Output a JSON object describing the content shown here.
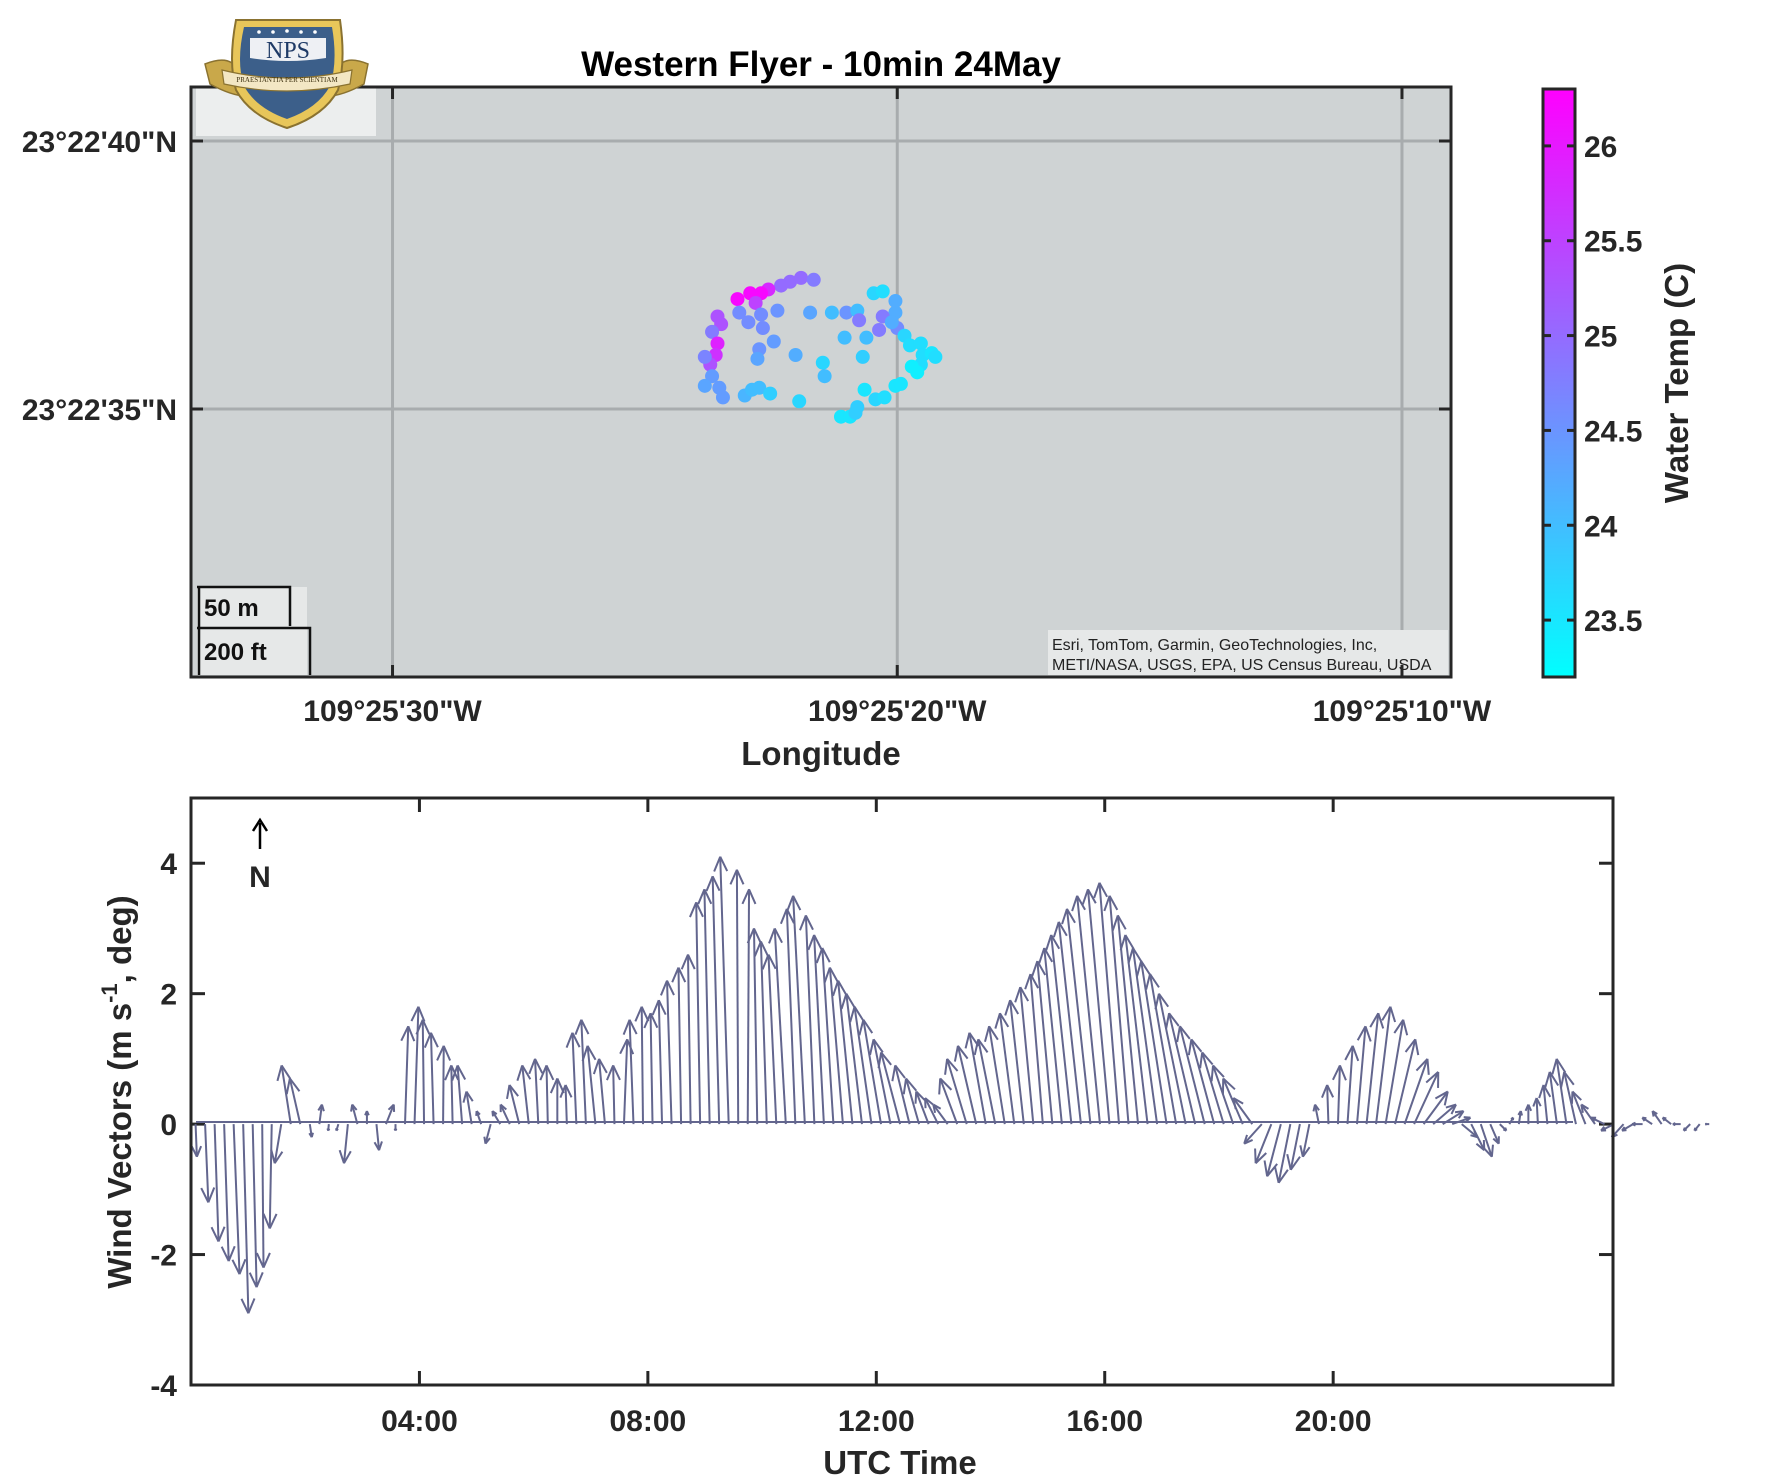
{
  "logo": {
    "text": "NPS",
    "motto": "PRAESTANTIA PER SCIENTIAM"
  },
  "chart_data": [
    {
      "type": "scatter",
      "title": "Western Flyer - 10min 24May",
      "xlabel": "Longitude",
      "ylabel": "",
      "background": "#cfd3d4",
      "x_ticks": [
        "109°25'30\"W",
        "109°25'20\"W",
        "109°25'10\"W"
      ],
      "x_tick_values": [
        -109.425,
        -109.42222,
        -109.41944
      ],
      "y_ticks": [
        "23°22'40\"N",
        "23°22'35\"N"
      ],
      "y_tick_values": [
        23.37778,
        23.37639
      ],
      "xlim": [
        -109.42611,
        -109.41917
      ],
      "ylim": [
        23.375,
        23.37806
      ],
      "scalebar": [
        "50 m",
        "200 ft"
      ],
      "attribution": [
        "Esri, TomTom, Garmin, GeoTechnologies, Inc,",
        "METI/NASA, USGS, EPA, US Census Bureau, USDA"
      ],
      "colorbar": {
        "label": "Water Temp (C)",
        "ticks": [
          "23.5",
          "24",
          "24.5",
          "25",
          "25.5",
          "26"
        ],
        "tick_values": [
          23.5,
          24,
          24.5,
          25,
          25.5,
          26
        ],
        "clim": [
          23.2,
          26.3
        ],
        "colors": [
          "#00ffff",
          "#ff00ff"
        ]
      },
      "points": [
        [
          -109.42281,
          23.37705,
          25.0
        ],
        [
          -109.42275,
          23.37707,
          25.0
        ],
        [
          -109.42268,
          23.37706,
          24.8
        ],
        [
          -109.42286,
          23.37703,
          25.0
        ],
        [
          -109.42293,
          23.37701,
          25.8
        ],
        [
          -109.42297,
          23.37699,
          26.2
        ],
        [
          -109.42303,
          23.37699,
          26.2
        ],
        [
          -109.4231,
          23.37696,
          26.2
        ],
        [
          -109.423,
          23.37694,
          25.5
        ],
        [
          -109.42309,
          23.37689,
          24.6
        ],
        [
          -109.42297,
          23.37688,
          24.6
        ],
        [
          -109.42304,
          23.37684,
          24.6
        ],
        [
          -109.42288,
          23.3769,
          24.5
        ],
        [
          -109.4227,
          23.37689,
          24.3
        ],
        [
          -109.42258,
          23.37689,
          24.0
        ],
        [
          -109.4225,
          23.37689,
          24.5
        ],
        [
          -109.42244,
          23.3769,
          24.0
        ],
        [
          -109.42235,
          23.37699,
          23.7
        ],
        [
          -109.4223,
          23.377,
          23.6
        ],
        [
          -109.42223,
          23.37695,
          24.2
        ],
        [
          -109.42223,
          23.37689,
          24.2
        ],
        [
          -109.4223,
          23.37687,
          24.8
        ],
        [
          -109.42222,
          23.37681,
          24.6
        ],
        [
          -109.42232,
          23.3768,
          24.8
        ],
        [
          -109.42239,
          23.37676,
          24.0
        ],
        [
          -109.42251,
          23.37676,
          24.0
        ],
        [
          -109.42218,
          23.37677,
          23.7
        ],
        [
          -109.42215,
          23.37672,
          23.6
        ],
        [
          -109.42209,
          23.37673,
          23.6
        ],
        [
          -109.42208,
          23.37667,
          23.6
        ],
        [
          -109.42209,
          23.37662,
          23.6
        ],
        [
          -109.42203,
          23.37668,
          23.5
        ],
        [
          -109.42201,
          23.37666,
          23.6
        ],
        [
          -109.42211,
          23.37658,
          23.4
        ],
        [
          -109.42214,
          23.37661,
          23.4
        ],
        [
          -109.42241,
          23.37666,
          23.8
        ],
        [
          -109.42263,
          23.37663,
          23.7
        ],
        [
          -109.42278,
          23.37667,
          24.2
        ],
        [
          -109.4229,
          23.37674,
          24.4
        ],
        [
          -109.42296,
          23.37681,
          24.6
        ],
        [
          -109.42298,
          23.3767,
          24.5
        ],
        [
          -109.42299,
          23.37665,
          24.3
        ],
        [
          -109.42319,
          23.37683,
          25.3
        ],
        [
          -109.42321,
          23.37687,
          25.3
        ],
        [
          -109.42324,
          23.37679,
          24.8
        ],
        [
          -109.42321,
          23.37673,
          25.9
        ],
        [
          -109.42322,
          23.37667,
          25.7
        ],
        [
          -109.42325,
          23.37662,
          25.3
        ],
        [
          -109.42328,
          23.37666,
          24.7
        ],
        [
          -109.42324,
          23.37656,
          24.4
        ],
        [
          -109.42328,
          23.37651,
          24.3
        ],
        [
          -109.4232,
          23.3765,
          24.4
        ],
        [
          -109.42318,
          23.37645,
          24.4
        ],
        [
          -109.42306,
          23.37646,
          24.1
        ],
        [
          -109.42302,
          23.37649,
          24.0
        ],
        [
          -109.42298,
          23.3765,
          24.0
        ],
        [
          -109.42292,
          23.37647,
          23.8
        ],
        [
          -109.42276,
          23.37643,
          23.7
        ],
        [
          -109.42253,
          23.37635,
          23.5
        ],
        [
          -109.42248,
          23.37635,
          23.5
        ],
        [
          -109.42245,
          23.37637,
          23.8
        ],
        [
          -109.42244,
          23.3764,
          23.8
        ],
        [
          -109.42234,
          23.37644,
          23.7
        ],
        [
          -109.42229,
          23.37645,
          23.6
        ],
        [
          -109.42223,
          23.37651,
          23.5
        ],
        [
          -109.4222,
          23.37652,
          23.5
        ],
        [
          -109.4224,
          23.37649,
          23.5
        ],
        [
          -109.42262,
          23.37656,
          24.0
        ],
        [
          -109.42225,
          23.37684,
          24.2
        ],
        [
          -109.42243,
          23.37685,
          24.8
        ]
      ]
    },
    {
      "type": "quiver",
      "title": "",
      "xlabel": "UTC Time",
      "ylabel": "Wind Vectors (m s^-1, deg)",
      "ylabel_parts": [
        "Wind Vectors (m s",
        "-1",
        ", deg)"
      ],
      "x_ticks": [
        "04:00",
        "08:00",
        "12:00",
        "16:00",
        "20:00"
      ],
      "x_tick_values": [
        4,
        8,
        12,
        16,
        20
      ],
      "y_ticks": [
        "-4",
        "-2",
        "0",
        "2",
        "4"
      ],
      "y_tick_values": [
        -4,
        -2,
        0,
        2,
        4
      ],
      "xlim": [
        0,
        24.9
      ],
      "ylim": [
        -4,
        5
      ],
      "north_label": "N",
      "arrow_color": "#63668e",
      "interval_hours": 0.1667,
      "u": [
        0.02,
        0.05,
        0.06,
        0.07,
        0.09,
        0.08,
        0.06,
        0.02,
        -0.03,
        -0.1,
        -0.14,
        -0.16,
        0.03,
        0.04,
        -0.01,
        -0.03,
        -0.06,
        -0.08,
        0.0,
        0.04,
        0.12,
        0.0,
        0.05,
        0.06,
        -0.02,
        -0.04,
        0.01,
        -0.02,
        -0.07,
        -0.08,
        -0.07,
        -0.08,
        -0.12,
        -0.14,
        -0.15,
        -0.1,
        -0.05,
        -0.02,
        0.0,
        -0.02,
        -0.06,
        -0.07,
        -0.12,
        -0.09,
        -0.02,
        0.05,
        -0.06,
        -0.02,
        -0.03,
        -0.05,
        -0.07,
        -0.04,
        -0.04,
        -0.06,
        -0.08,
        -0.1,
        -0.13,
        -0.02,
        0.02,
        -0.05,
        -0.09,
        -0.12,
        -0.17,
        -0.13,
        -0.18,
        -0.13,
        -0.15,
        -0.17,
        -0.2,
        -0.22,
        -0.24,
        -0.26,
        -0.27,
        -0.26,
        -0.29,
        -0.22,
        -0.2,
        -0.19,
        -0.2,
        -0.22,
        -0.26,
        -0.3,
        -0.28,
        -0.25,
        -0.26,
        -0.24,
        -0.22,
        -0.21,
        -0.2,
        -0.19,
        -0.23,
        -0.27,
        -0.31,
        -0.34,
        -0.36,
        -0.35,
        -0.33,
        -0.3,
        -0.29,
        -0.31,
        -0.34,
        -0.37,
        -0.39,
        -0.4,
        -0.41,
        -0.4,
        -0.38,
        -0.35,
        -0.33,
        -0.31,
        -0.3,
        -0.29,
        -0.27,
        -0.24,
        -0.21,
        -0.18,
        -0.14,
        -0.1,
        -0.06,
        -0.02,
        0.03,
        0.08,
        0.13,
        0.18,
        0.22,
        0.27,
        0.31,
        0.35,
        0.37,
        0.37,
        0.35,
        0.32,
        0.28,
        0.24,
        0.2,
        0.17,
        0.13,
        0.1,
        0.06,
        0.03,
        0.0,
        -0.02,
        -0.06,
        -0.11,
        -0.15,
        -0.18,
        -0.2,
        -0.21,
        -0.21,
        -0.2,
        -0.18,
        -0.17,
        -0.16,
        -0.15,
        -0.14,
        -0.13,
        -0.12,
        -0.1,
        -0.08,
        -0.06
      ],
      "v": [
        -0.5,
        -1.2,
        -1.8,
        -2.1,
        -2.3,
        -2.9,
        -2.5,
        -2.2,
        -1.6,
        -0.6,
        0.9,
        0.7,
        -0.2,
        0.3,
        -0.1,
        -0.1,
        -0.6,
        0.3,
        0.2,
        -0.4,
        0.3,
        -0.1,
        1.5,
        1.8,
        1.6,
        1.4,
        1.2,
        0.9,
        0.9,
        0.5,
        0.2,
        -0.3,
        0.2,
        0.3,
        0.6,
        0.9,
        1.0,
        0.9,
        0.7,
        0.6,
        1.4,
        1.6,
        1.2,
        1.0,
        0.9,
        1.3,
        1.6,
        1.8,
        1.7,
        1.9,
        2.2,
        2.4,
        2.6,
        3.4,
        3.6,
        3.8,
        4.1,
        3.9,
        3.6,
        3.0,
        2.8,
        2.6,
        3.0,
        3.3,
        3.5,
        3.2,
        2.9,
        2.7,
        2.4,
        2.2,
        2.0,
        1.8,
        1.6,
        1.3,
        1.1,
        0.9,
        0.7,
        0.5,
        0.4,
        0.3,
        0.7,
        1.0,
        1.2,
        1.4,
        1.3,
        1.5,
        1.7,
        1.9,
        2.1,
        2.3,
        2.5,
        2.7,
        2.9,
        3.1,
        3.3,
        3.5,
        3.6,
        3.7,
        3.5,
        3.2,
        2.9,
        2.7,
        2.5,
        2.3,
        2.0,
        1.7,
        1.5,
        1.3,
        1.1,
        0.9,
        0.7,
        0.4,
        -0.3,
        -0.6,
        -0.8,
        -0.9,
        -0.7,
        -0.5,
        0.3,
        0.6,
        0.9,
        1.2,
        1.5,
        1.7,
        1.8,
        1.6,
        1.3,
        1.0,
        0.8,
        0.5,
        0.3,
        0.2,
        0.1,
        -0.2,
        -0.4,
        -0.5,
        -0.3,
        -0.1,
        0.1,
        0.2,
        0.3,
        0.4,
        0.6,
        0.8,
        1.0,
        0.8,
        0.5,
        0.3,
        0.1,
        -0.1,
        -0.2,
        -0.1,
        0.0,
        0.1,
        0.2,
        0.1,
        0.0,
        -0.1,
        -0.1,
        0.0
      ]
    }
  ]
}
